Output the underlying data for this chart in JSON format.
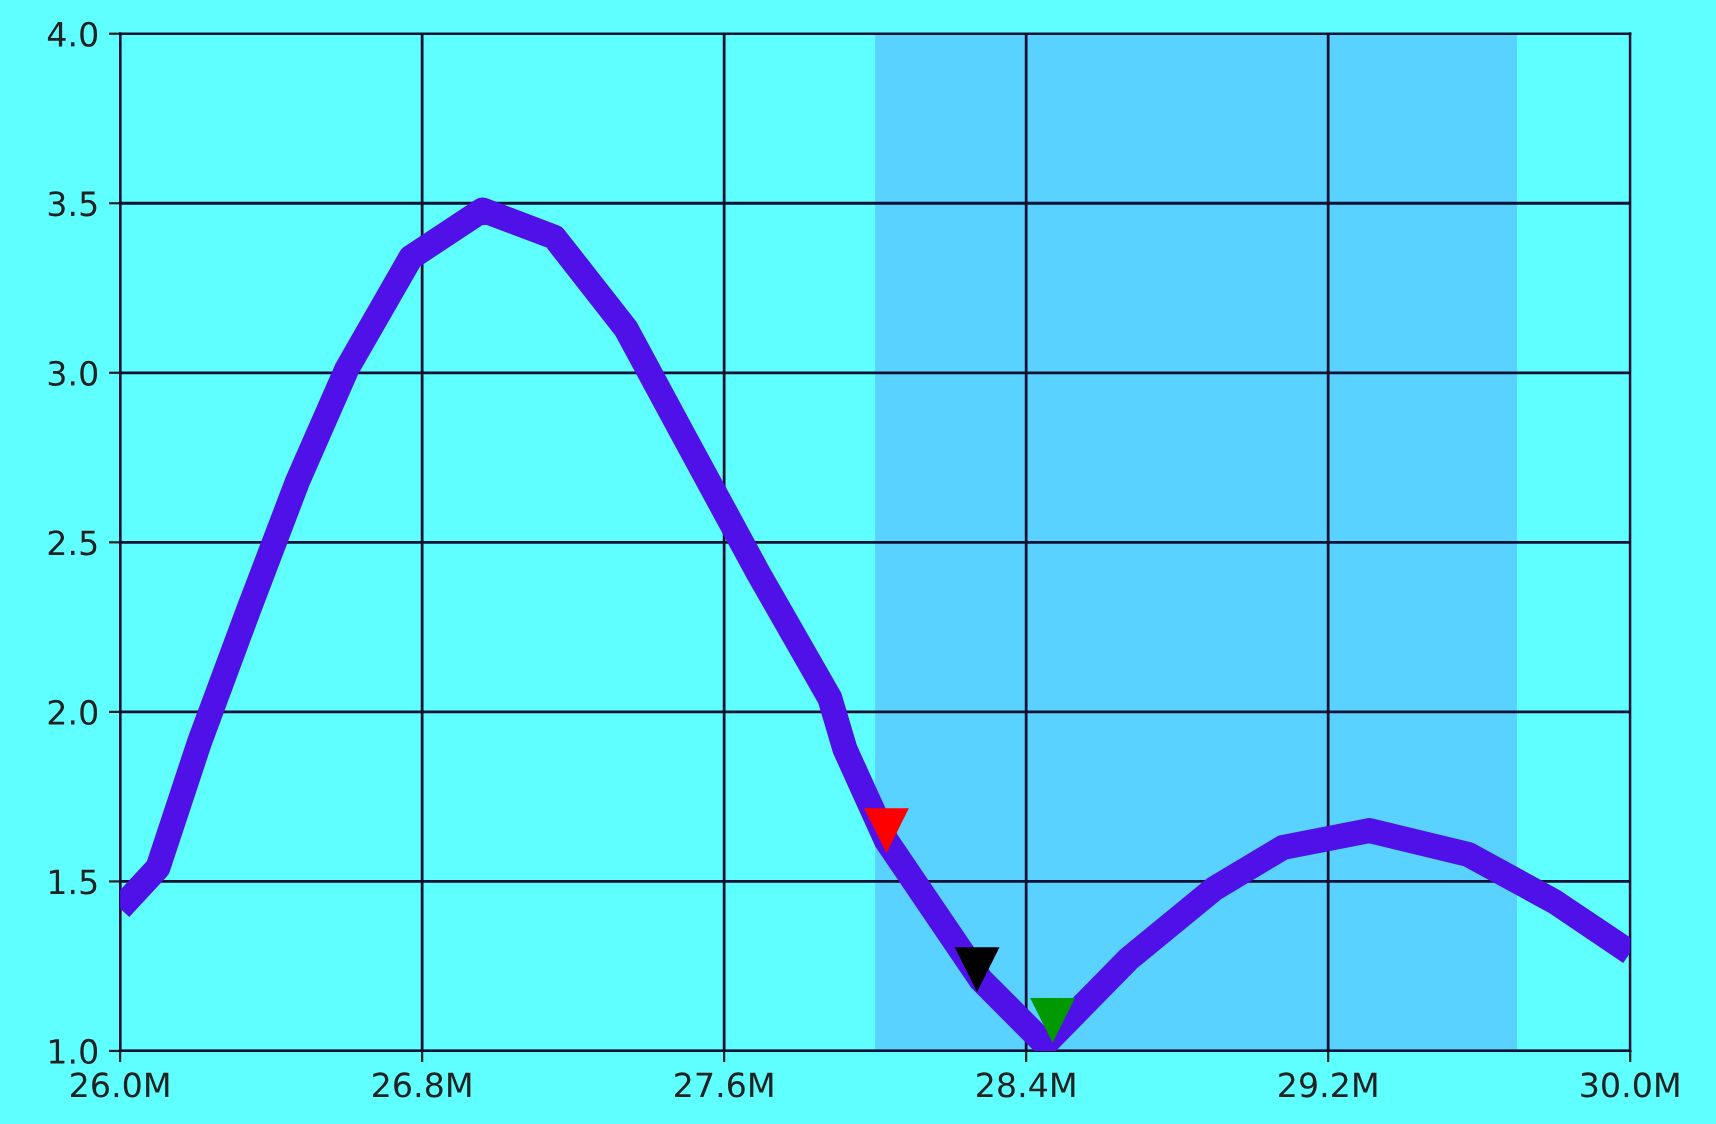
{
  "chart_data": {
    "type": "line",
    "x": [
      26.0,
      26.1,
      26.21,
      26.34,
      26.47,
      26.6,
      26.77,
      26.96,
      27.15,
      27.34,
      27.5,
      27.69,
      27.88,
      27.92,
      28.03,
      28.28,
      28.45,
      28.67,
      28.9,
      29.08,
      29.31,
      29.57,
      29.8,
      30.0
    ],
    "series": [
      {
        "color": "#5010e8",
        "values": [
          1.42,
          1.54,
          1.91,
          2.3,
          2.68,
          3.01,
          3.34,
          3.48,
          3.4,
          3.13,
          2.8,
          2.41,
          2.04,
          1.89,
          1.62,
          1.21,
          1.02,
          1.27,
          1.48,
          1.6,
          1.65,
          1.58,
          1.44,
          1.29
        ]
      },
      {
        "type": "scatter",
        "marker": "triangle",
        "color": "#ff0000",
        "x": [
          28.03
        ],
        "values": [
          1.65
        ]
      },
      {
        "type": "scatter",
        "marker": "triangle",
        "color": "#000000",
        "x": [
          28.27
        ],
        "values": [
          1.24
        ]
      },
      {
        "type": "scatter",
        "marker": "triangle",
        "color": "#009900",
        "x": [
          28.47
        ],
        "values": [
          1.09
        ]
      }
    ],
    "bands": [
      {
        "axis": "x",
        "from": 28.0,
        "to": 29.7,
        "color": "#5ad2ff"
      }
    ],
    "xlim": [
      26.0,
      30.0
    ],
    "xticks": [
      {
        "value": 26.0,
        "label": "26.0M"
      },
      {
        "value": 26.8,
        "label": "26.8M"
      },
      {
        "value": 27.6,
        "label": "27.6M"
      },
      {
        "value": 28.4,
        "label": "28.4M"
      },
      {
        "value": 29.2,
        "label": "29.2M"
      },
      {
        "value": 30.0,
        "label": "30.0M"
      }
    ],
    "ylim": [
      1.0,
      4.0
    ],
    "yticks": [
      {
        "value": 1.0,
        "label": "1.0"
      },
      {
        "value": 1.5,
        "label": "1.5"
      },
      {
        "value": 2.0,
        "label": "2.0"
      },
      {
        "value": 2.5,
        "label": "2.5"
      },
      {
        "value": 3.0,
        "label": "3.0"
      },
      {
        "value": 3.5,
        "label": "3.5"
      },
      {
        "value": 4.0,
        "label": "4.0"
      }
    ],
    "grid": true,
    "legend": false
  }
}
